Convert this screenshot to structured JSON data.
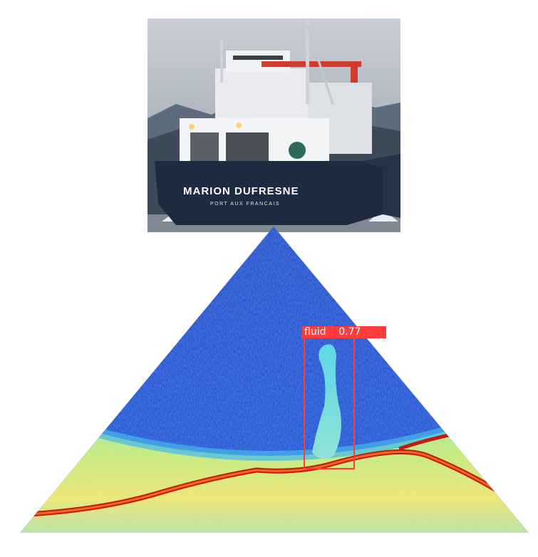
{
  "ship_photo": {
    "hull_name": "MARION DUFRESNE",
    "home_port": "PORT AUX FRANCAIS"
  },
  "detection": {
    "class_name": "fluid",
    "score": "0.77",
    "color": "#ff3b3b"
  }
}
